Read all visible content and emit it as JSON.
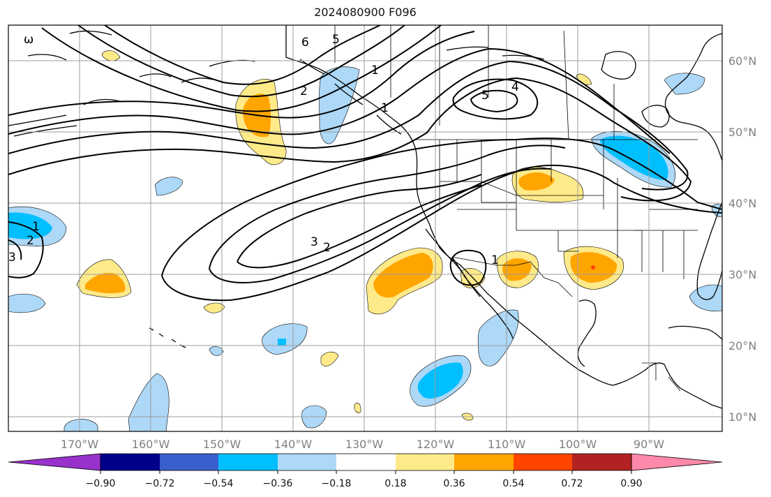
{
  "title": "2024080900 F096",
  "lat_labels": [
    "60°N",
    "50°N",
    "40°N",
    "30°N",
    "20°N",
    "10°N"
  ],
  "lon_labels": [
    "170°W",
    "160°W",
    "150°W",
    "140°W",
    "130°W",
    "120°W",
    "110°W",
    "100°W",
    "90°W"
  ],
  "colorbar": {
    "colors": [
      "#9932cc",
      "#00008b",
      "#3a5fcd",
      "#00bfff",
      "#add8f7",
      "#ffffff",
      "#ffea8a",
      "#ffa500",
      "#ff4500",
      "#b22222",
      "#ff89aa"
    ],
    "tick_labels": [
      "−0.90",
      "−0.72",
      "−0.54",
      "−0.36",
      "−0.18",
      "0.18",
      "0.36",
      "0.54",
      "0.72",
      "0.90"
    ]
  },
  "contour_labels": [
    "6",
    "5",
    "1",
    "2",
    "5",
    "4",
    "1",
    "3",
    "2",
    "1",
    "2",
    "3",
    "1",
    "ω"
  ]
}
